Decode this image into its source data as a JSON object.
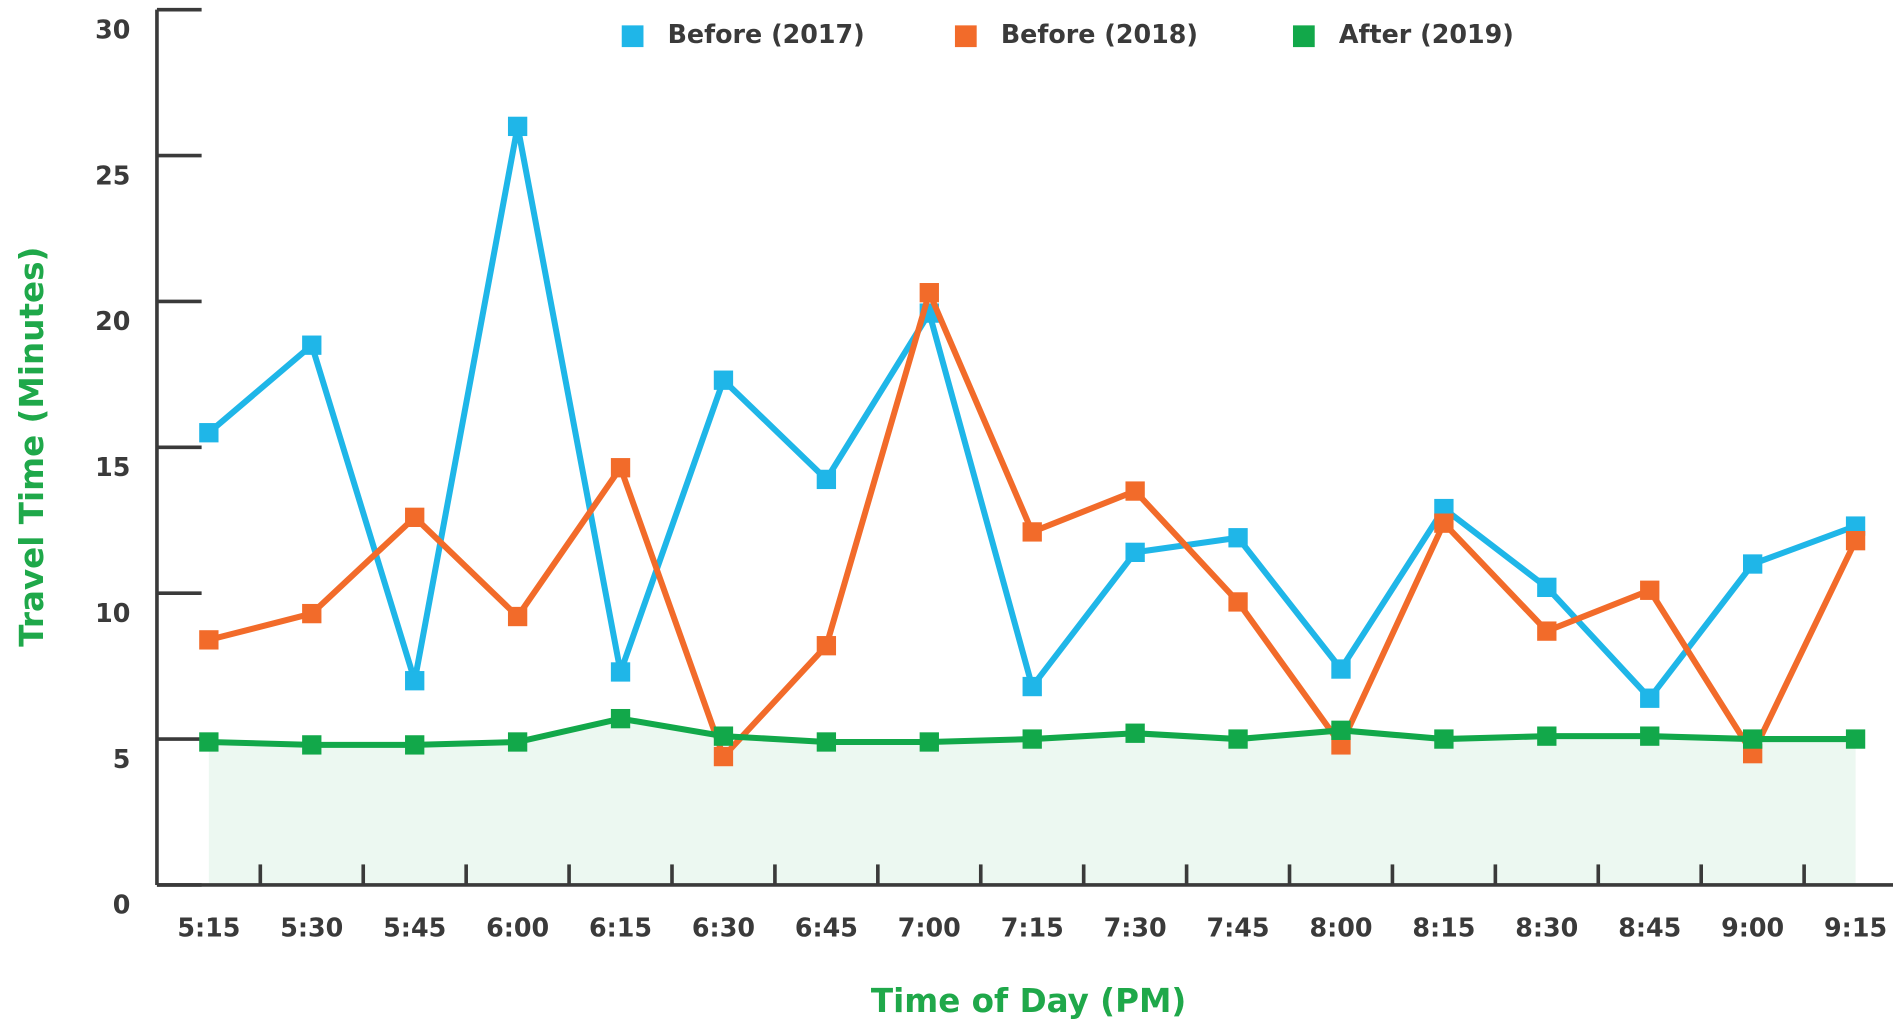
{
  "chart_data": {
    "type": "line",
    "x_label": "Time of Day (PM)",
    "y_label": "Travel Time (Minutes)",
    "categories": [
      "5:15",
      "5:30",
      "5:45",
      "6:00",
      "6:15",
      "6:30",
      "6:45",
      "7:00",
      "7:15",
      "7:30",
      "7:45",
      "8:00",
      "8:15",
      "8:30",
      "8:45",
      "9:00",
      "9:15"
    ],
    "series": [
      {
        "name": "Before (2017)",
        "color": "#1fb6e8",
        "values": [
          15.5,
          18.5,
          7.0,
          26.0,
          7.3,
          17.3,
          13.9,
          19.6,
          6.8,
          11.4,
          11.9,
          7.4,
          12.9,
          10.2,
          6.4,
          11.0,
          12.3
        ]
      },
      {
        "name": "Before (2018)",
        "color": "#f26b2a",
        "values": [
          8.4,
          9.3,
          12.6,
          9.2,
          14.3,
          4.4,
          8.2,
          20.3,
          12.1,
          13.5,
          9.7,
          4.8,
          12.4,
          8.7,
          10.1,
          4.5,
          11.8
        ]
      },
      {
        "name": "After (2019)",
        "color": "#12a84a",
        "area": true,
        "values": [
          4.9,
          4.8,
          4.8,
          4.9,
          5.7,
          5.1,
          4.9,
          4.9,
          5.0,
          5.2,
          5.0,
          5.3,
          5.0,
          5.1,
          5.1,
          5.0,
          5.0
        ]
      }
    ],
    "ylim": [
      0,
      30
    ],
    "yticks": [
      0,
      5,
      10,
      15,
      20,
      25,
      30
    ],
    "legend": "top"
  }
}
